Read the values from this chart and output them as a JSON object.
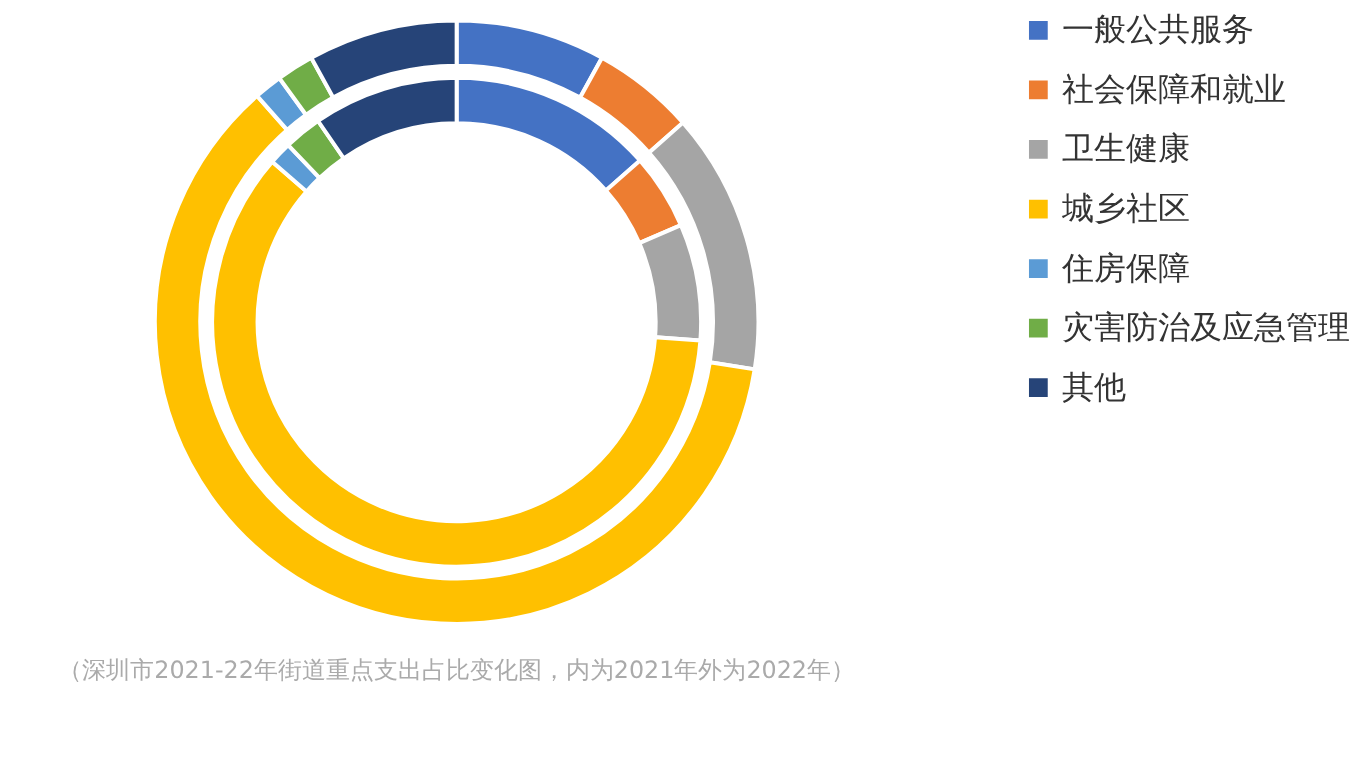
{
  "chart_data": {
    "type": "donut",
    "categories": [
      "一般公共服务",
      "社会保障和就业",
      "卫生健康",
      "城乡社区",
      "住房保障",
      "灾害防治及应急管理",
      "其他"
    ],
    "colors": [
      "#4472c4",
      "#ed7d31",
      "#a5a5a5",
      "#ffc000",
      "#5b9bd5",
      "#70ad47",
      "#264478"
    ],
    "series": [
      {
        "values": [
          13.5,
          5,
          7.7,
          60.2,
          1.5,
          2.5,
          9.6
        ]
      },
      {
        "values": [
          8,
          5.5,
          14,
          61,
          1.5,
          2,
          8
        ]
      }
    ],
    "legend": "right",
    "annotations": [
      "（深圳市2021-22年街道重点支出占比变化图，内为2021年外为2022年）"
    ]
  }
}
